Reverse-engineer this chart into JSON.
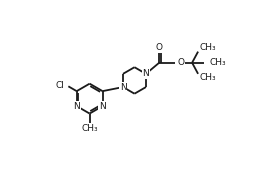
{
  "background_color": "#ffffff",
  "line_color": "#1a1a1a",
  "line_width": 1.3,
  "font_size": 6.5,
  "figure_width": 2.77,
  "figure_height": 1.72,
  "dpi": 100,
  "xlim": [
    0,
    10
  ],
  "ylim": [
    0,
    6.2
  ]
}
